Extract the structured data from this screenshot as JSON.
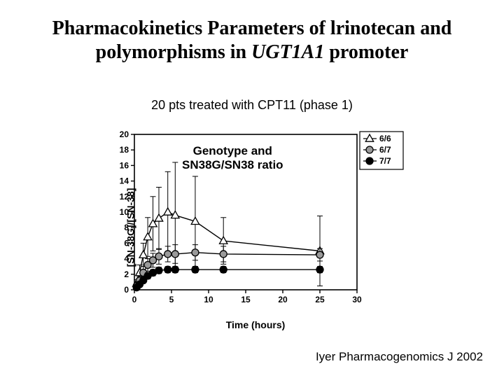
{
  "title": {
    "line1": "Pharmacokinetics Parameters of lrinotecan and",
    "line2_pre": "polymorphisms in ",
    "line2_italic": "UGT1A1",
    "line2_post": " promoter"
  },
  "subtitle": "20 pts treated with CPT11 (phase 1)",
  "chart_inner_label_line1": "Genotype and",
  "chart_inner_label_line2": "SN38G/SN38 ratio",
  "citation": "Iyer  Pharmacogenomics J 2002",
  "chart": {
    "type": "line-with-errorbars",
    "xlabel": "Time (hours)",
    "ylabel": "[SN-38G]/[SN-38]",
    "xlim": [
      0,
      30
    ],
    "ylim": [
      0,
      20
    ],
    "xtick_step": 5,
    "ytick_step": 2,
    "background_color": "#ffffff",
    "axis_color": "#000000",
    "line_width": 1.4,
    "marker_size": 5,
    "tick_fontsize": 12,
    "label_fontsize": 14,
    "legend": {
      "position": "top-right-outside",
      "border": true,
      "items": [
        {
          "label": "6/6",
          "marker": "triangle",
          "fill": "#ffffff",
          "stroke": "#000000"
        },
        {
          "label": "6/7",
          "marker": "circle",
          "fill": "#9a9a9a",
          "stroke": "#000000"
        },
        {
          "label": "7/7",
          "marker": "circle",
          "fill": "#000000",
          "stroke": "#000000"
        }
      ]
    },
    "series": [
      {
        "name": "6/6",
        "marker": "triangle",
        "marker_fill": "#ffffff",
        "marker_stroke": "#000000",
        "line_color": "#000000",
        "x": [
          0.3,
          0.7,
          1.2,
          1.8,
          2.5,
          3.3,
          4.5,
          5.5,
          8.2,
          12.0,
          25.0
        ],
        "y": [
          0.8,
          2.2,
          4.5,
          6.8,
          8.5,
          9.2,
          10.0,
          9.6,
          8.8,
          6.3,
          5.0
        ],
        "err": [
          0.5,
          1.0,
          1.5,
          2.5,
          3.5,
          4.0,
          5.2,
          6.8,
          5.8,
          3.0,
          4.5
        ]
      },
      {
        "name": "6/7",
        "marker": "circle",
        "marker_fill": "#9a9a9a",
        "marker_stroke": "#000000",
        "line_color": "#000000",
        "x": [
          0.3,
          0.7,
          1.2,
          1.8,
          2.5,
          3.3,
          4.5,
          5.5,
          8.2,
          12.0,
          25.0
        ],
        "y": [
          0.5,
          1.2,
          2.2,
          3.2,
          3.8,
          4.3,
          4.6,
          4.6,
          4.8,
          4.6,
          4.5
        ],
        "err": [
          0.3,
          0.5,
          0.8,
          0.8,
          0.9,
          1.0,
          1.0,
          1.2,
          1.0,
          1.0,
          0.8
        ]
      },
      {
        "name": "7/7",
        "marker": "circle",
        "marker_fill": "#000000",
        "marker_stroke": "#000000",
        "line_color": "#000000",
        "x": [
          0.3,
          0.7,
          1.2,
          1.8,
          2.5,
          3.3,
          4.5,
          5.5,
          8.2,
          12.0,
          25.0
        ],
        "y": [
          0.3,
          0.7,
          1.2,
          1.8,
          2.2,
          2.5,
          2.6,
          2.6,
          2.6,
          2.6,
          2.6
        ],
        "err": [
          0.2,
          0.3,
          0.3,
          0.4,
          0.4,
          0.4,
          0.4,
          0.4,
          0.4,
          0.4,
          0.4
        ]
      }
    ]
  }
}
